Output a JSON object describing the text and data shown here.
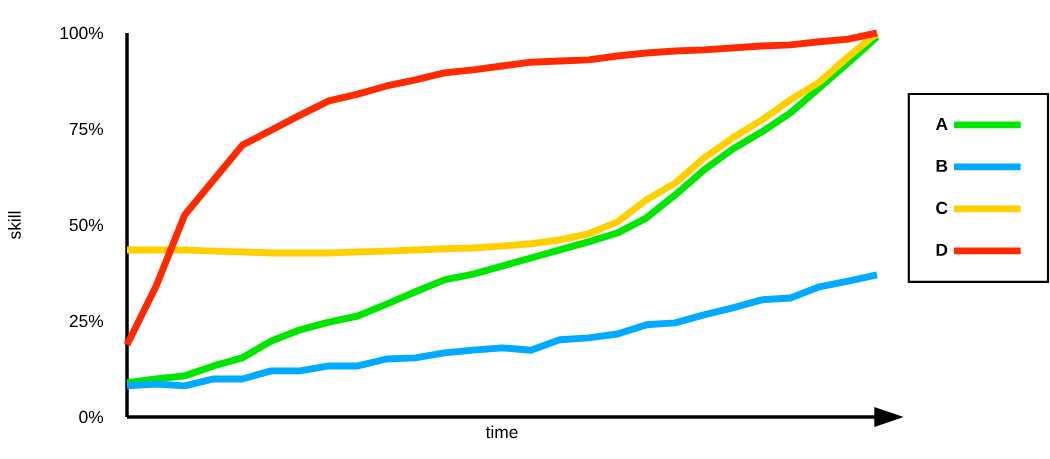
{
  "chart_data": {
    "type": "line",
    "xlabel": "time",
    "ylabel": "skill",
    "categories": [
      null,
      null,
      null,
      null,
      null,
      null,
      null,
      null,
      null,
      null,
      null,
      null,
      null,
      null,
      null,
      null,
      null,
      null,
      null,
      null,
      null,
      null,
      null,
      null,
      null,
      null,
      null
    ],
    "ylim": [
      0,
      100
    ],
    "yticks": [
      {
        "value": 0,
        "label": "0%"
      },
      {
        "value": 25,
        "label": "25%"
      },
      {
        "value": 50,
        "label": "50%"
      },
      {
        "value": 75,
        "label": "75%"
      },
      {
        "value": 100,
        "label": "100%"
      }
    ],
    "grid": false,
    "legend": "right",
    "marker": "none",
    "line_style": "solid",
    "series": [
      {
        "name": "A",
        "color": "#00e600",
        "values": [
          8.9,
          9.9,
          10.7,
          13.3,
          15.4,
          19.8,
          22.7,
          24.7,
          26.3,
          29.4,
          32.6,
          35.7,
          37.2,
          39.3,
          41.4,
          43.5,
          45.6,
          47.9,
          51.8,
          57.8,
          64.3,
          69.8,
          74.2,
          79.2,
          85.7,
          92.2,
          99
        ]
      },
      {
        "name": "B",
        "color": "#00aaff",
        "values": [
          8.1,
          8.6,
          8.1,
          9.9,
          9.9,
          12.0,
          12.0,
          13.3,
          13.3,
          15.1,
          15.4,
          16.7,
          17.4,
          18.0,
          17.4,
          20.1,
          20.6,
          21.6,
          24.0,
          24.5,
          26.6,
          28.4,
          30.5,
          31.0,
          33.9,
          35.4,
          37.0
        ]
      },
      {
        "name": "C",
        "color": "#ffd000",
        "values": [
          43.5,
          43.5,
          43.5,
          43.2,
          43.0,
          42.7,
          42.7,
          42.7,
          43.0,
          43.2,
          43.5,
          43.8,
          44.0,
          44.5,
          45.1,
          46.1,
          47.7,
          50.8,
          56.5,
          60.9,
          67.4,
          72.7,
          77.3,
          82.6,
          87.2,
          93.8,
          100
        ]
      },
      {
        "name": "D",
        "color": "#ff2a00",
        "values": [
          18.8,
          33.9,
          52.6,
          61.7,
          70.8,
          74.7,
          78.6,
          82.3,
          84.1,
          86.2,
          87.8,
          89.6,
          90.4,
          91.4,
          92.4,
          92.7,
          93.0,
          94.0,
          94.8,
          95.3,
          95.6,
          96.1,
          96.6,
          96.9,
          97.7,
          98.4,
          100
        ]
      }
    ]
  }
}
